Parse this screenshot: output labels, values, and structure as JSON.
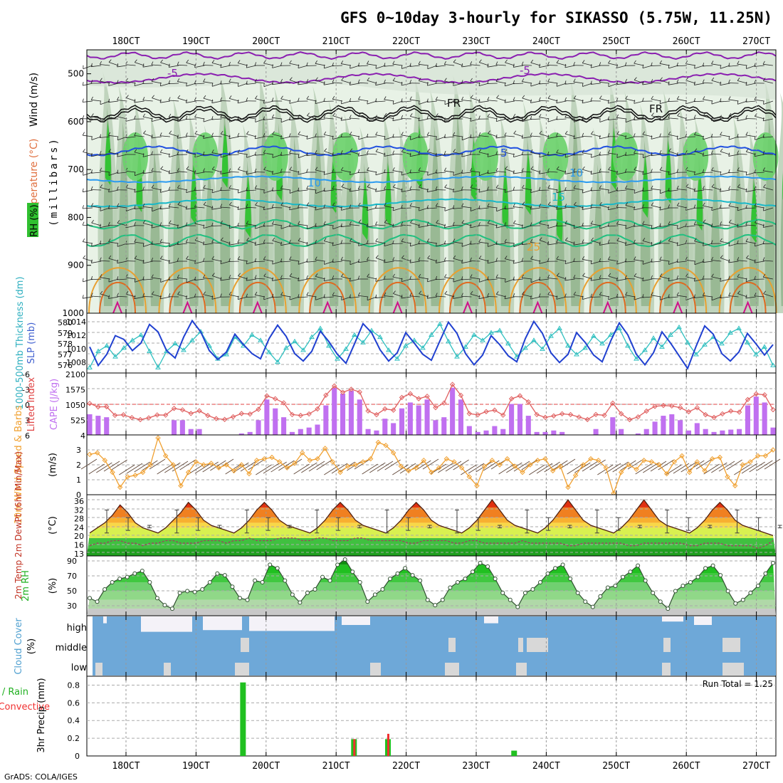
{
  "title": "GFS 0~10day 3-hourly for SIKASSO (5.75W, 11.25N)",
  "footer": "GrADS: COLA/IGES",
  "time_axis": {
    "labels": [
      "18OCT",
      "19OCT",
      "20OCT",
      "21OCT",
      "22OCT",
      "23OCT",
      "24OCT",
      "25OCT",
      "26OCT",
      "27OCT"
    ]
  },
  "colors": {
    "temp_line": "#e06060",
    "cape_bar": "#c070f0",
    "wind_line": "#f0a030",
    "slp_line": "#2040d0",
    "thick_line": "#30c0c0",
    "rh_green": "#20c020",
    "cloud_blue": "#6ea8d8",
    "precip_total": "#20c020",
    "precip_conv": "#f03030"
  },
  "panels": {
    "upper": {
      "ylabel": "(millibars)",
      "side_labels": [
        "Wind (m/s)",
        "Temperature (°C)",
        "RH (%)"
      ],
      "y_ticks": [
        "500",
        "600",
        "700",
        "800",
        "900",
        "1000"
      ],
      "contour_labels": [
        "-5",
        "-5",
        "FR",
        "FR",
        "5",
        "10",
        "10",
        "15",
        "25"
      ]
    },
    "thickness_slp": {
      "left_label": "1000-500mb Thickness (dm)",
      "right_label": "SLP (mb)",
      "left_ticks": [
        "580",
        "579",
        "578",
        "577",
        "576"
      ],
      "right_ticks": [
        "1014",
        "1012",
        "1010",
        "1008"
      ]
    },
    "li_cape": {
      "left_label": "Lifted Index",
      "right_label": "CAPE (J/kg)",
      "li_ticks": [
        "-6",
        "-3",
        "0",
        "3",
        "6"
      ],
      "cape_ticks": [
        "2100",
        "1575",
        "1050",
        "525",
        "4"
      ]
    },
    "wind10m": {
      "label": "10m Wind Speed & Barbs",
      "unit": "(m/s)",
      "ticks": [
        "3",
        "2",
        "1",
        "0"
      ]
    },
    "temp2m": {
      "label": "2m Temp 2m DewPt (6hr Min/Max)",
      "unit": "(°C)",
      "ticks": [
        "36",
        "32",
        "28",
        "24",
        "20",
        "16",
        "13"
      ]
    },
    "rh2m": {
      "label": "2m RH",
      "unit": "(%)",
      "ticks": [
        "90",
        "70",
        "50",
        "30"
      ]
    },
    "cloud": {
      "label": "Cloud Cover",
      "unit": "(%)",
      "levels": [
        "high",
        "middle",
        "low"
      ]
    },
    "precip": {
      "label": "3hr Precip (mm)",
      "legend_total": "Total / Rain",
      "legend_conv": "Convective",
      "run_total": "Run Total = 1.25",
      "ticks": [
        "0.8",
        "0.6",
        "0.4",
        "0.2",
        "0"
      ]
    }
  },
  "chart_data": [
    {
      "type": "line",
      "name": "1000-500mb Thickness (dm) & SLP (mb)",
      "series": [
        {
          "name": "Thickness",
          "axis": "left",
          "ylim": [
            575.5,
            581
          ],
          "values": [
            576.0,
            577.5,
            578.0,
            577.0,
            577.8,
            578.5,
            579.0,
            577.5,
            576.0,
            577.5,
            578.2,
            577.6,
            578.5,
            579.3,
            578.0,
            576.8,
            577.2,
            578.8,
            578.0,
            579.0,
            578.5,
            577.4,
            576.5,
            577.8,
            578.4,
            577.6,
            578.8,
            579.6,
            578.0,
            576.8,
            577.7,
            579.0,
            578.3,
            579.4,
            578.8,
            577.6,
            576.8,
            578.0,
            578.5,
            577.8,
            579.0,
            580.0,
            578.4,
            577.0,
            577.9,
            579.0,
            578.5,
            579.2,
            579.4,
            578.2,
            577.0,
            577.8,
            578.5,
            577.7,
            578.9,
            579.6,
            578.0,
            577.2,
            577.8,
            578.9,
            578.2,
            579.0,
            579.6,
            578.0,
            576.8,
            577.6,
            578.7,
            577.9,
            579.0,
            579.7,
            578.3,
            577.2,
            578.1,
            578.8,
            578.2,
            579.2,
            579.6,
            578.3,
            577.2,
            577.9,
            576.2
          ]
        },
        {
          "name": "SLP",
          "axis": "right",
          "ylim": [
            1007,
            1015
          ],
          "values": [
            1010.5,
            1008.0,
            1009.5,
            1012.0,
            1011.5,
            1010.0,
            1011.0,
            1013.5,
            1012.5,
            1010.0,
            1009.0,
            1011.8,
            1014.0,
            1012.5,
            1010.0,
            1008.8,
            1009.8,
            1012.2,
            1010.8,
            1009.6,
            1008.9,
            1011.6,
            1013.4,
            1011.9,
            1009.6,
            1008.6,
            1009.9,
            1012.6,
            1011.2,
            1009.5,
            1008.3,
            1010.9,
            1013.6,
            1012.4,
            1010.1,
            1008.6,
            1009.7,
            1012.4,
            1011.0,
            1009.5,
            1008.7,
            1011.3,
            1013.8,
            1012.3,
            1009.6,
            1008.1,
            1009.4,
            1012.0,
            1010.8,
            1009.3,
            1008.5,
            1011.6,
            1013.9,
            1012.3,
            1009.7,
            1008.4,
            1009.5,
            1012.4,
            1011.1,
            1009.4,
            1008.5,
            1011.3,
            1013.7,
            1012.1,
            1009.5,
            1008.1,
            1009.7,
            1012.5,
            1011.0,
            1009.3,
            1007.6,
            1010.6,
            1013.3,
            1012.2,
            1009.6,
            1008.6,
            1009.8,
            1012.3,
            1010.9,
            1009.4,
            1010.8
          ]
        }
      ],
      "x_labels": [
        "18OCT",
        "19OCT",
        "20OCT",
        "21OCT",
        "22OCT",
        "23OCT",
        "24OCT",
        "25OCT",
        "26OCT",
        "27OCT"
      ]
    },
    {
      "type": "bar",
      "name": "Lifted Index & CAPE",
      "cape_ylim": [
        0,
        2100
      ],
      "li_ylim": [
        6,
        -6
      ],
      "cape": [
        700,
        650,
        600,
        0,
        0,
        0,
        0,
        0,
        0,
        0,
        500,
        500,
        200,
        200,
        0,
        0,
        0,
        0,
        50,
        100,
        500,
        1200,
        900,
        600,
        100,
        200,
        250,
        350,
        1000,
        1600,
        1400,
        1500,
        1200,
        200,
        150,
        550,
        400,
        900,
        1100,
        1000,
        1200,
        500,
        600,
        1600,
        1200,
        300,
        100,
        150,
        300,
        200,
        1050,
        1050,
        650,
        100,
        100,
        150,
        100,
        0,
        0,
        0,
        200,
        0,
        600,
        200,
        0,
        50,
        200,
        450,
        650,
        700,
        500,
        150,
        400,
        200,
        100,
        150,
        180,
        200,
        1000,
        1300,
        1100,
        250
      ]
    },
    {
      "type": "line",
      "name": "10m Wind Speed",
      "ylim": [
        0,
        4
      ],
      "values": [
        2.7,
        2.8,
        2.3,
        1.5,
        0.5,
        1.2,
        1.3,
        1.5,
        2.0,
        3.8,
        2.6,
        2.0,
        0.6,
        1.5,
        2.2,
        2.0,
        2.1,
        1.8,
        2.0,
        1.6,
        2.0,
        1.4,
        2.3,
        2.4,
        2.5,
        2.2,
        1.8,
        2.1,
        2.8,
        2.3,
        2.4,
        3.1,
        2.2,
        1.5,
        1.9,
        2.0,
        2.2,
        2.4,
        3.5,
        3.3,
        2.8,
        1.9,
        1.6,
        1.8,
        2.3,
        1.5,
        1.8,
        2.4,
        2.2,
        1.8,
        1.2,
        0.6,
        1.9,
        2.3,
        2.0,
        2.4,
        1.9,
        1.5,
        2.0,
        2.3,
        2.4,
        1.6,
        1.9,
        0.5,
        1.3,
        2.0,
        2.4,
        2.3,
        1.8,
        0.1,
        1.5,
        2.0,
        1.7,
        2.3,
        2.2,
        2.0,
        1.4,
        2.2,
        2.6,
        1.5,
        2.2,
        1.6,
        2.4,
        2.5,
        1.2,
        0.6,
        2.0,
        2.2,
        2.6,
        2.6,
        3.0
      ]
    },
    {
      "type": "area",
      "name": "2m Temp & DewPt",
      "ylim": [
        13,
        37
      ],
      "temp": [
        22,
        24,
        26,
        29,
        33,
        30,
        26,
        24,
        23,
        22,
        24,
        27,
        30,
        34,
        31,
        27,
        25,
        24,
        23,
        22,
        24,
        27,
        31,
        34,
        31,
        27,
        25,
        24,
        23,
        22,
        24,
        27,
        31,
        34,
        31,
        27,
        25,
        24,
        23,
        22,
        24,
        27,
        31,
        34,
        31,
        27,
        25,
        24,
        23,
        22,
        24,
        27,
        31,
        35,
        31,
        27,
        25,
        24,
        23,
        22,
        24,
        27,
        31,
        35,
        31,
        27,
        25,
        24,
        23,
        22,
        24,
        27,
        31,
        35,
        31,
        27,
        25,
        24,
        23,
        22,
        24,
        27,
        31,
        34,
        31,
        27,
        25,
        24,
        23,
        22,
        21
      ],
      "dewpt": [
        17,
        18,
        18,
        19,
        19,
        18,
        18,
        17,
        18,
        18,
        19,
        19,
        18,
        18,
        18,
        19,
        19,
        19,
        18,
        19,
        19,
        20,
        19,
        19,
        19,
        20,
        20,
        20,
        19,
        19,
        20,
        20,
        19,
        19,
        19,
        20,
        20,
        19,
        19,
        19,
        19,
        19,
        18,
        18,
        19,
        19,
        19,
        19,
        18,
        18,
        19,
        19,
        18,
        18,
        18,
        18,
        18,
        19,
        18,
        18,
        18,
        18,
        18,
        17,
        17,
        18,
        18,
        18,
        18,
        18,
        18,
        17,
        17,
        18,
        18,
        18,
        18,
        18,
        18,
        17,
        17,
        18,
        18,
        18,
        17,
        17,
        17,
        17,
        16,
        17,
        19
      ]
    },
    {
      "type": "area",
      "name": "2m RH",
      "ylim": [
        22,
        90
      ],
      "values": [
        42,
        38,
        52,
        60,
        64,
        66,
        70,
        73,
        60,
        42,
        34,
        30,
        48,
        50,
        49,
        52,
        60,
        70,
        68,
        55,
        42,
        40,
        62,
        60,
        80,
        76,
        62,
        46,
        37,
        48,
        52,
        66,
        62,
        80,
        86,
        72,
        60,
        38,
        46,
        52,
        64,
        70,
        76,
        68,
        62,
        40,
        34,
        40,
        54,
        60,
        64,
        72,
        82,
        78,
        64,
        48,
        40,
        32,
        48,
        52,
        60,
        70,
        76,
        80,
        64,
        48,
        38,
        32,
        44,
        54,
        56,
        66,
        72,
        79,
        62,
        48,
        38,
        30,
        50,
        56,
        60,
        66,
        76,
        79,
        68,
        50,
        36,
        40,
        48,
        56,
        70,
        82
      ]
    },
    {
      "type": "bar",
      "name": "3hr Precip",
      "ylim": [
        0,
        0.9
      ],
      "bars": [
        {
          "x": 0.2266,
          "total": 0.83,
          "conv": 0.0
        },
        {
          "x": 0.3877,
          "total": 0.19,
          "conv": 0.19
        },
        {
          "x": 0.437,
          "total": 0.19,
          "conv": 0.25
        },
        {
          "x": 0.6201,
          "total": 0.06,
          "conv": 0.0
        }
      ],
      "run_total": 1.25
    }
  ]
}
